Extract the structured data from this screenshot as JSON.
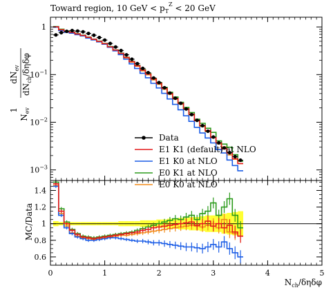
{
  "chart_data": {
    "type": "line",
    "title": "Toward region, 10 GeV < p",
    "title_sub": "T",
    "title_sup": "Z",
    "title_tail": " < 20 GeV",
    "xlabel": "N",
    "xlabel_sub": "ch",
    "xlabel_tail": "/δηδφ",
    "ylabel_num": "dN",
    "ylabel_num_sub": "ev",
    "ylabel_den": "dN",
    "ylabel_den_sub": "ch",
    "ylabel_den_tail": "/δηδφ",
    "ylabel_pref_num": "1",
    "ylabel_pref_den": "N",
    "ylabel_pref_den_sub": "ev",
    "ratio_ylabel": "MC/Data",
    "xlim": [
      0,
      5
    ],
    "main_ylim": [
      0.0006,
      1.6
    ],
    "main_yscale": "log",
    "ratio_ylim": [
      0.5,
      1.52
    ],
    "x_ticks": [
      {
        "v": 0,
        "label": "0"
      },
      {
        "v": 1,
        "label": "1"
      },
      {
        "v": 2,
        "label": "2"
      },
      {
        "v": 3,
        "label": "3"
      },
      {
        "v": 4,
        "label": "4"
      },
      {
        "v": 5,
        "label": "5"
      }
    ],
    "main_y_ticks": [
      {
        "v": 1,
        "label": "1"
      },
      {
        "v": 0.1,
        "label": "10",
        "exp": "−1"
      },
      {
        "v": 0.01,
        "label": "10",
        "exp": "−2"
      },
      {
        "v": 0.001,
        "label": "10",
        "exp": "−3"
      }
    ],
    "ratio_y_ticks": [
      {
        "v": 0.6,
        "label": "0.6"
      },
      {
        "v": 0.8,
        "label": "0.8"
      },
      {
        "v": 1.0,
        "label": "1"
      },
      {
        "v": 1.2,
        "label": "1.2"
      },
      {
        "v": 1.4,
        "label": "1.4"
      }
    ],
    "legend_position": "center-right",
    "legend": [
      {
        "label": "Data",
        "color": "#000000",
        "marker": "dot"
      },
      {
        "label": "E1 K1 (default) at NLO",
        "color": "#e41a1c",
        "marker": "line"
      },
      {
        "label": "E1 K0 at NLO",
        "color": "#1a5ce6",
        "marker": "line"
      },
      {
        "label": "E0 K1 at NLO",
        "color": "#2a9a1a",
        "marker": "line"
      },
      {
        "label": "E0 K0 at NLO",
        "color": "#f28c1a",
        "marker": "line"
      }
    ],
    "data_x": [
      0.1,
      0.2,
      0.3,
      0.4,
      0.5,
      0.6,
      0.7,
      0.8,
      0.9,
      1.0,
      1.1,
      1.2,
      1.3,
      1.4,
      1.5,
      1.6,
      1.7,
      1.8,
      1.9,
      2.0,
      2.1,
      2.2,
      2.3,
      2.4,
      2.5,
      2.6,
      2.7,
      2.8,
      2.9,
      3.0,
      3.1,
      3.2,
      3.3,
      3.4,
      3.5
    ],
    "data_y": [
      0.68,
      0.76,
      0.81,
      0.84,
      0.82,
      0.79,
      0.73,
      0.67,
      0.6,
      0.53,
      0.45,
      0.38,
      0.32,
      0.26,
      0.21,
      0.17,
      0.135,
      0.11,
      0.085,
      0.068,
      0.053,
      0.041,
      0.032,
      0.025,
      0.019,
      0.0145,
      0.011,
      0.0085,
      0.0065,
      0.0049,
      0.0037,
      0.0029,
      0.0023,
      0.0019,
      0.0016
    ],
    "series": [
      {
        "name": "E1 K1 (default) at NLO",
        "color": "#e41a1c",
        "ratio": [
          1.48,
          1.15,
          1.0,
          0.92,
          0.87,
          0.84,
          0.83,
          0.82,
          0.83,
          0.84,
          0.85,
          0.86,
          0.87,
          0.88,
          0.89,
          0.9,
          0.92,
          0.93,
          0.95,
          0.96,
          0.97,
          0.98,
          0.99,
          1.0,
          1.01,
          1.02,
          0.98,
          1.0,
          1.03,
          0.97,
          1.0,
          0.95,
          0.98,
          0.9,
          0.85
        ],
        "band": [
          0.03,
          0.02,
          0.02,
          0.02,
          0.02,
          0.02,
          0.02,
          0.02,
          0.02,
          0.02,
          0.02,
          0.02,
          0.03,
          0.03,
          0.03,
          0.03,
          0.04,
          0.04,
          0.04,
          0.05,
          0.05,
          0.06,
          0.06,
          0.07,
          0.07,
          0.08,
          0.08,
          0.09,
          0.1,
          0.1,
          0.1,
          0.12,
          0.13,
          0.14,
          0.15
        ]
      },
      {
        "name": "E1 K0 at NLO",
        "color": "#1a5ce6",
        "ratio": [
          1.45,
          1.1,
          0.95,
          0.88,
          0.84,
          0.82,
          0.8,
          0.8,
          0.81,
          0.82,
          0.83,
          0.83,
          0.82,
          0.81,
          0.8,
          0.79,
          0.79,
          0.78,
          0.77,
          0.77,
          0.76,
          0.75,
          0.74,
          0.73,
          0.72,
          0.72,
          0.71,
          0.7,
          0.72,
          0.75,
          0.72,
          0.78,
          0.7,
          0.65,
          0.6
        ]
      },
      {
        "name": "E0 K1 at NLO",
        "color": "#2a9a1a",
        "ratio": [
          1.5,
          1.18,
          1.02,
          0.93,
          0.88,
          0.85,
          0.84,
          0.83,
          0.84,
          0.85,
          0.86,
          0.87,
          0.88,
          0.89,
          0.9,
          0.92,
          0.94,
          0.96,
          0.98,
          1.0,
          1.02,
          1.04,
          1.06,
          1.05,
          1.08,
          1.1,
          1.05,
          1.12,
          1.15,
          1.25,
          1.1,
          1.2,
          1.3,
          1.1,
          0.95
        ]
      },
      {
        "name": "E0 K0 at NLO",
        "color": "#f28c1a",
        "ratio": [
          1.46,
          1.12,
          0.97,
          0.89,
          0.85,
          0.83,
          0.82,
          0.81,
          0.82,
          0.83,
          0.84,
          0.85,
          0.86,
          0.86,
          0.87,
          0.88,
          0.89,
          0.9,
          0.91,
          0.92,
          0.93,
          0.94,
          0.95,
          0.96,
          0.97,
          0.98,
          0.97,
          0.96,
          0.98,
          1.0,
          0.95,
          1.05,
          0.9,
          0.88,
          0.85
        ]
      }
    ]
  }
}
